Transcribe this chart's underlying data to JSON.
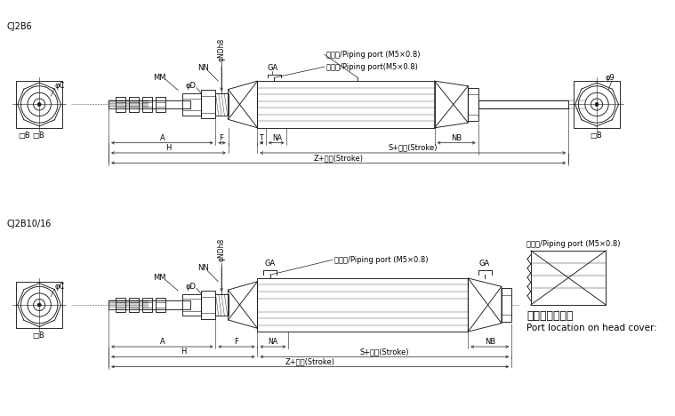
{
  "bg_color": "#ffffff",
  "line_color": "#1a1a1a",
  "title1": "CJ2B6",
  "title2": "CJ2B10/16",
  "top": {
    "nndh8": "φNDh8",
    "nn": "NN",
    "mm": "MM",
    "phid": "φD",
    "ga": "GA",
    "port1": "接气孔/Piping port (M5×0.8)",
    "port2": "接气孔/Piping port(M5×0.8)",
    "phi9": "φ9",
    "phic": "φC",
    "boxb": "□B",
    "a_lbl": "A",
    "f_lbl": "F",
    "t_lbl": "T",
    "na_lbl": "NA",
    "nb_lbl": "NB",
    "h_lbl": "H",
    "s_stroke": "S+行程(Stroke)",
    "z_stroke": "Z+行程(Stroke)"
  },
  "bot": {
    "nndh8": "φNDh8",
    "nn": "NN",
    "mm": "MM",
    "phid": "φD",
    "ga": "GA",
    "ga2": "GA",
    "port1": "接气孔/Piping port (M5×0.8)",
    "port2": "接气孔/Piping port (M5×0.8)",
    "phic": "φC",
    "boxb": "□B",
    "a_lbl": "A",
    "f_lbl": "F",
    "na_lbl": "NA",
    "nb_lbl": "NB",
    "h_lbl": "H",
    "s_stroke": "S+行程(Stroke)",
    "z_stroke": "Z+行程(Stroke)",
    "axial_cn": "轴向节气孔型式",
    "axial_en": "Port location on head cover:"
  }
}
